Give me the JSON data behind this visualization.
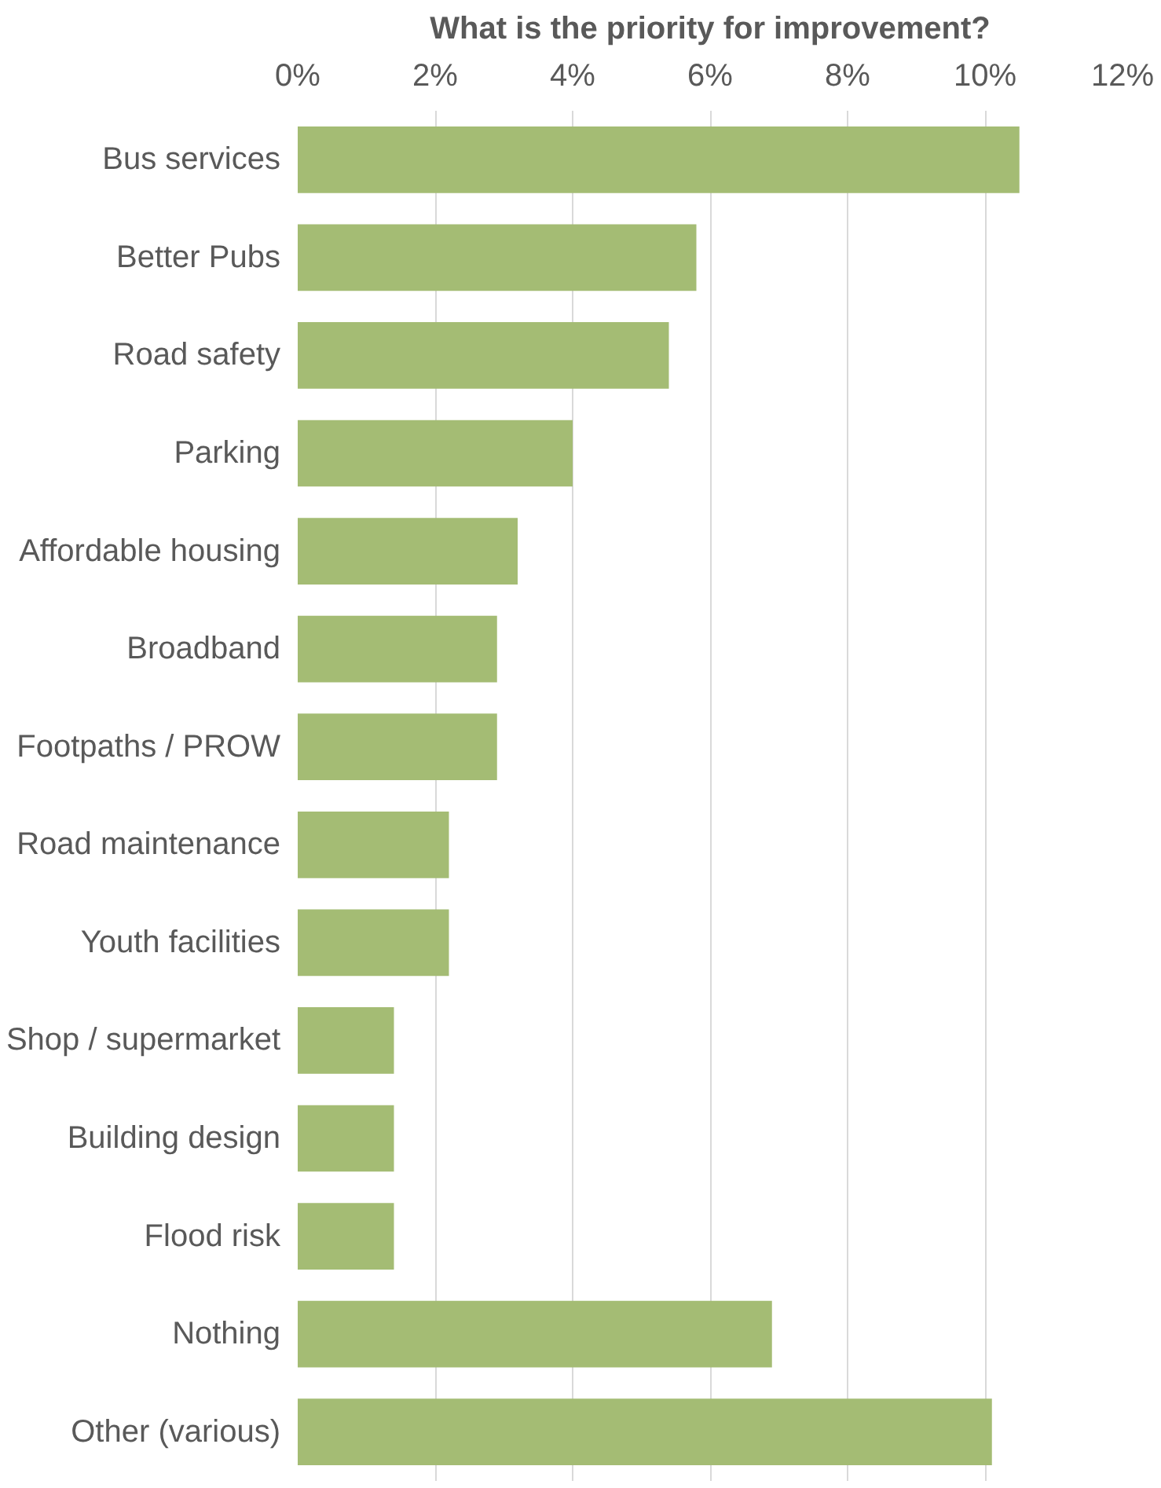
{
  "chart_data": {
    "type": "bar",
    "orientation": "horizontal",
    "title": "What is the priority for improvement?",
    "categories": [
      "Bus services",
      "Better Pubs",
      "Road safety",
      "Parking",
      "Affordable housing",
      "Broadband",
      "Footpaths / PROW",
      "Road maintenance",
      "Youth facilities",
      "Shop / supermarket",
      "Building design",
      "Flood risk",
      "Nothing",
      "Other (various)"
    ],
    "values": [
      10.5,
      5.8,
      5.4,
      4.0,
      3.2,
      2.9,
      2.9,
      2.2,
      2.2,
      1.4,
      1.4,
      1.4,
      6.9,
      10.1
    ],
    "color": "#a4bc74",
    "xlim": [
      0,
      12
    ],
    "xticks": [
      {
        "value": 0,
        "label": "0%"
      },
      {
        "value": 2,
        "label": "2%"
      },
      {
        "value": 4,
        "label": "4%"
      },
      {
        "value": 6,
        "label": "6%"
      },
      {
        "value": 8,
        "label": "8%"
      },
      {
        "value": 10,
        "label": "10%"
      },
      {
        "value": 12,
        "label": "12%"
      }
    ],
    "grid": "x"
  }
}
